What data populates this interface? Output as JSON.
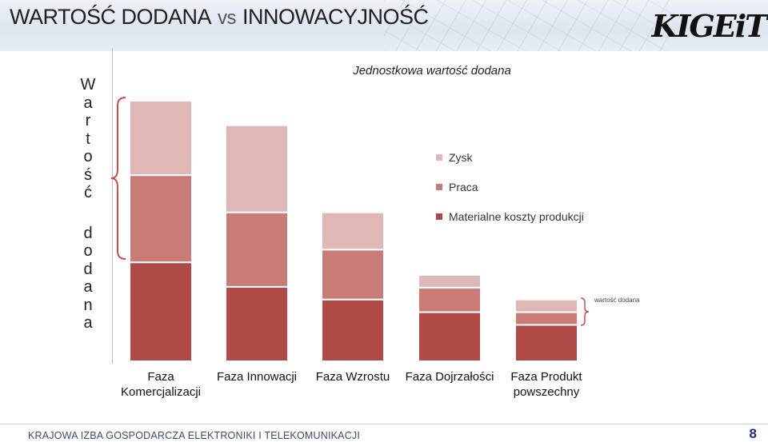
{
  "header": {
    "title_left": "WARTOŚĆ DODANA",
    "title_vs": "vs",
    "title_right": "INNOWACYJNOŚĆ",
    "logo_text": "KIGEiT"
  },
  "vertical_label": {
    "chars_top": [
      "W",
      "a",
      "r",
      "t",
      "o",
      "ś",
      "ć"
    ],
    "chars_bottom": [
      "d",
      "o",
      "d",
      "a",
      "n",
      "a"
    ]
  },
  "annotation": {
    "small_label": "wartość dodana"
  },
  "footer": {
    "text": "KRAJOWA IZBA GOSPODARCZA ELEKTRONIKI I TELEKOMUNIKACJI",
    "page_number": "8"
  },
  "colors": {
    "materialne": "#b04a47",
    "praca": "#c97b78",
    "zysk": "#dfb7b6",
    "bracket": "#c0504d"
  },
  "chart_data": {
    "type": "bar",
    "stacked": true,
    "title": "Jednostkowa wartość dodana",
    "categories": [
      [
        "Faza",
        "Komercjalizacji"
      ],
      [
        "Faza Innowacji"
      ],
      [
        "Faza Wzrostu"
      ],
      [
        "Faza Dojrzałości"
      ],
      [
        "Faza Produkt",
        "powszechny"
      ]
    ],
    "series": [
      {
        "name": "Materialne koszty produkcji",
        "values": [
          125,
          94,
          78,
          62,
          46
        ]
      },
      {
        "name": "Praca",
        "values": [
          110,
          94,
          63,
          31,
          16
        ]
      },
      {
        "name": "Zysk",
        "values": [
          94,
          110,
          47,
          16,
          16
        ]
      }
    ],
    "legend_order": [
      "Zysk",
      "Praca",
      "Materialne koszty produkcji"
    ],
    "ylim": [
      0,
      333
    ],
    "grid": false,
    "legend_position": "right"
  }
}
